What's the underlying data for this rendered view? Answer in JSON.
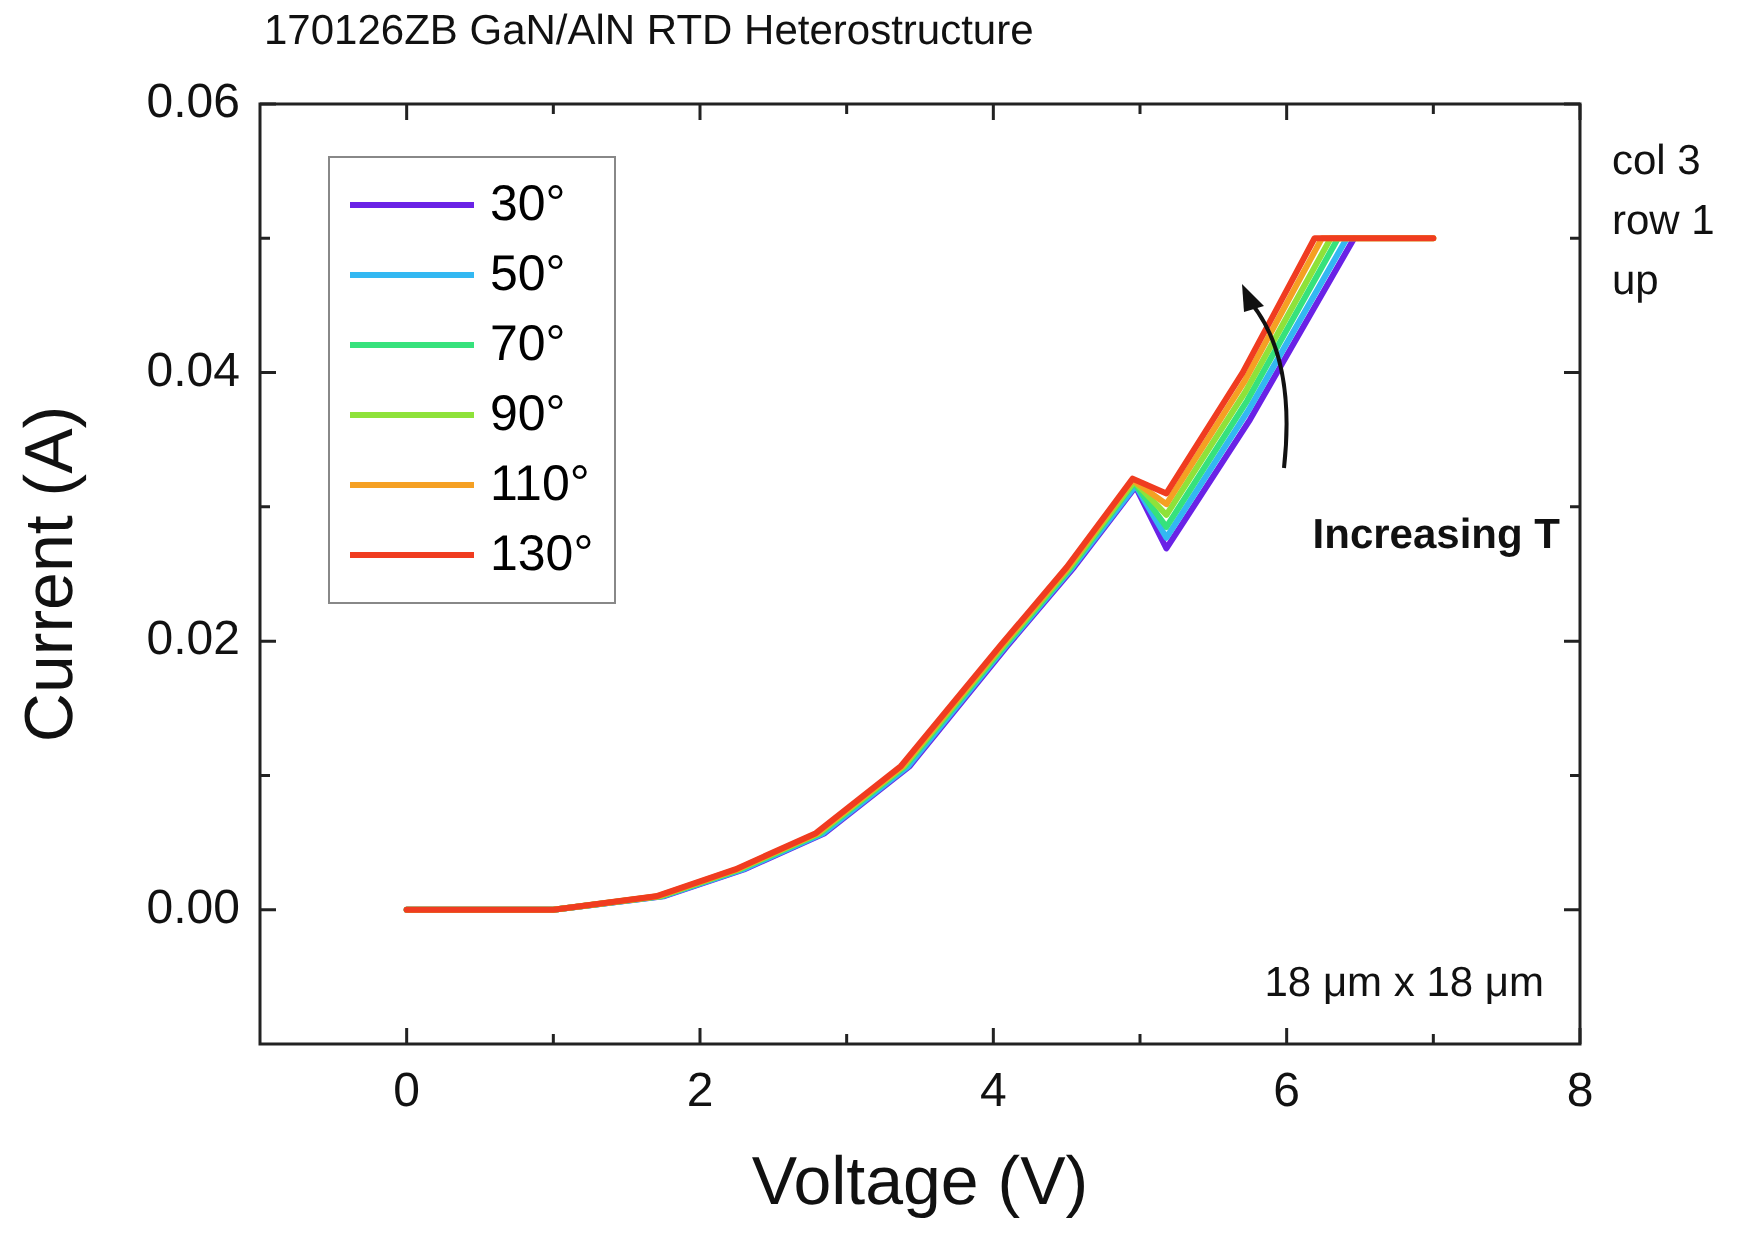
{
  "chart_data": {
    "type": "line",
    "title": "170126ZB GaN/AlN RTD Heterostructure",
    "xlabel": "Voltage (V)",
    "ylabel": "Current (A)",
    "xlim": [
      -1,
      8
    ],
    "xticks": [
      0,
      {
        "value": 1,
        "label": null
      },
      2,
      {
        "value": 3,
        "label": null
      },
      4,
      {
        "value": 5,
        "label": null
      },
      6,
      {
        "value": 7,
        "label": null
      },
      8
    ],
    "ylim": [
      -0.01,
      0.06
    ],
    "yticks": [
      {
        "value": 0,
        "label": "0.00"
      },
      {
        "value": 0.01,
        "label": null
      },
      {
        "value": 0.02,
        "label": "0.02"
      },
      {
        "value": 0.03,
        "label": null
      },
      {
        "value": 0.04,
        "label": "0.04"
      },
      {
        "value": 0.05,
        "label": null
      },
      {
        "value": 0.06,
        "label": "0.06"
      }
    ],
    "grid": false,
    "legend": "top left",
    "marker": "none",
    "line_style": "solid",
    "annotations": [
      "Increasing T",
      "18 μm x 18 μm",
      "col 3\nrow 1\nup"
    ],
    "series": [
      {
        "name": "30°",
        "color": "#6a22e6",
        "x": [
          0,
          1.0,
          1.75,
          2.3,
          2.85,
          3.43,
          4.1,
          4.55,
          4.97,
          5.18,
          5.75,
          6.46
        ],
        "values": [
          0,
          0,
          0.001,
          0.003,
          0.0057,
          0.0107,
          0.0197,
          0.0255,
          0.0315,
          0.0269,
          0.0365,
          0.05
        ]
      },
      {
        "name": "50°",
        "color": "#33b8f2",
        "x": [
          0,
          1.0,
          1.74,
          2.29,
          2.84,
          3.42,
          4.09,
          4.54,
          4.97,
          5.18,
          5.74,
          6.41
        ],
        "values": [
          0,
          0,
          0.001,
          0.003,
          0.0057,
          0.0107,
          0.0197,
          0.0255,
          0.0316,
          0.0277,
          0.0372,
          0.05
        ]
      },
      {
        "name": "70°",
        "color": "#36e27c",
        "x": [
          0,
          1.0,
          1.73,
          2.27,
          2.82,
          3.4,
          4.08,
          4.53,
          4.96,
          5.18,
          5.73,
          6.35
        ],
        "values": [
          0,
          0,
          0.001,
          0.003,
          0.0057,
          0.0107,
          0.0197,
          0.0255,
          0.0318,
          0.0285,
          0.0379,
          0.05
        ]
      },
      {
        "name": "90°",
        "color": "#8ee23a",
        "x": [
          0,
          1.0,
          1.72,
          2.26,
          2.81,
          3.39,
          4.07,
          4.52,
          4.96,
          5.18,
          5.72,
          6.3,
          7.0
        ],
        "values": [
          0,
          0,
          0.001,
          0.003,
          0.0057,
          0.0107,
          0.0197,
          0.0255,
          0.0319,
          0.0294,
          0.0386,
          0.05,
          0.05
        ]
      },
      {
        "name": "110°",
        "color": "#f5a023",
        "x": [
          0,
          1.0,
          1.71,
          2.25,
          2.8,
          3.38,
          4.06,
          4.51,
          4.95,
          5.18,
          5.71,
          6.24,
          7.0
        ],
        "values": [
          0,
          0,
          0.001,
          0.003,
          0.0057,
          0.0107,
          0.0197,
          0.0255,
          0.032,
          0.0302,
          0.0393,
          0.05,
          0.05
        ]
      },
      {
        "name": "130°",
        "color": "#f03c20",
        "x": [
          0,
          1.0,
          1.7,
          2.24,
          2.79,
          3.37,
          4.05,
          4.5,
          4.95,
          5.18,
          5.7,
          6.19,
          7.0
        ],
        "values": [
          0,
          0,
          0.001,
          0.003,
          0.0057,
          0.0107,
          0.0197,
          0.0255,
          0.0321,
          0.031,
          0.04,
          0.05,
          0.05
        ]
      }
    ]
  }
}
